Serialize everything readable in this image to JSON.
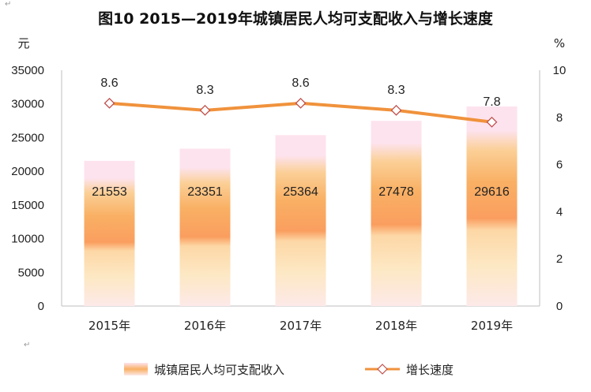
{
  "chart_data": {
    "type": "bar",
    "title": "图10  2015—2019年城镇居民人均可支配收入与增长速度",
    "categories": [
      "2015年",
      "2016年",
      "2017年",
      "2018年",
      "2019年"
    ],
    "y_left": {
      "unit": "元",
      "range": [
        0,
        35000
      ],
      "ticks": [
        "0",
        "5000",
        "10000",
        "15000",
        "20000",
        "25000",
        "30000",
        "35000"
      ]
    },
    "y_right": {
      "unit": "%",
      "range": [
        0,
        10
      ],
      "ticks": [
        "0",
        "2",
        "4",
        "6",
        "8",
        "10"
      ]
    },
    "series": [
      {
        "name": "城镇居民人均可支配收入",
        "type": "bar",
        "axis": "left",
        "values": [
          21553,
          23351,
          25364,
          27478,
          29616
        ],
        "labels": [
          "21553",
          "23351",
          "25364",
          "27478",
          "29616"
        ]
      },
      {
        "name": "增长速度",
        "type": "line",
        "axis": "right",
        "values": [
          8.6,
          8.3,
          8.6,
          8.3,
          7.8
        ],
        "labels": [
          "8.6",
          "8.3",
          "8.6",
          "8.3",
          "7.8"
        ],
        "color": "#f0923c"
      }
    ],
    "legend_position": "bottom",
    "grid": false,
    "colors": {
      "bar_top": "#fde3ee",
      "bar_mid": "#f9a66a",
      "bar_bottom": "#fde9e4",
      "line": "#f0923c",
      "marker_fill": "#ffffff",
      "marker_stroke": "#c0504d"
    }
  },
  "marks": [
    "↵",
    "↵"
  ]
}
